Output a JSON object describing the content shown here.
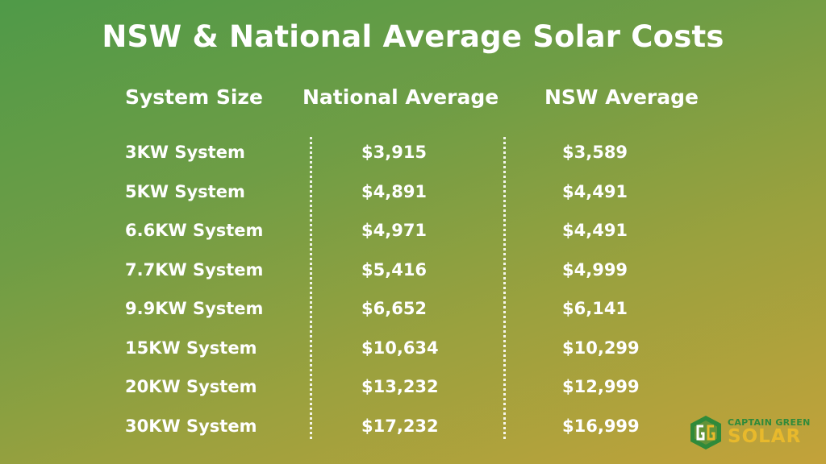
{
  "title": "NSW & National Average Solar Costs",
  "headers": {
    "system_size": "System Size",
    "national_average": "National Average",
    "nsw_average": "NSW Average"
  },
  "rows": [
    {
      "size": "3KW System",
      "national": "$3,915",
      "nsw": "$3,589"
    },
    {
      "size": "5KW System",
      "national": "$4,891",
      "nsw": "$4,491"
    },
    {
      "size": "6.6KW System",
      "national": "$4,971",
      "nsw": "$4,491"
    },
    {
      "size": "7.7KW System",
      "national": "$5,416",
      "nsw": "$4,999"
    },
    {
      "size": "9.9KW System",
      "national": "$6,652",
      "nsw": "$6,141"
    },
    {
      "size": "15KW System",
      "national": "$10,634",
      "nsw": "$10,299"
    },
    {
      "size": "20KW System",
      "national": "$13,232",
      "nsw": "$12,999"
    },
    {
      "size": "30KW System",
      "national": "$17,232",
      "nsw": "$16,999"
    }
  ],
  "logo": {
    "line1": "CAPTAIN GREEN",
    "line2": "SOLAR"
  },
  "colors": {
    "logo_green": "#2f8a3a",
    "logo_yellow": "#e8b92c"
  }
}
